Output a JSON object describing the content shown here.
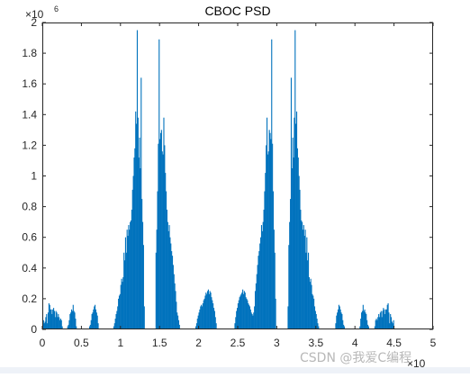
{
  "chart_data": {
    "type": "bar",
    "title": "CBOC PSD",
    "xlabel": "",
    "ylabel": "",
    "x_exponent_label": "×10",
    "y_exponent_label": "×10",
    "y_exponent_power": "6",
    "xlim": [
      0,
      5
    ],
    "ylim": [
      0,
      2
    ],
    "x_ticks": [
      "0",
      "0.5",
      "1",
      "1.5",
      "2",
      "2.5",
      "3",
      "3.5",
      "4",
      "4.5",
      "5"
    ],
    "y_ticks": [
      "0",
      "0.2",
      "0.4",
      "0.6",
      "0.8",
      "1",
      "1.2",
      "1.4",
      "1.6",
      "1.8",
      "2"
    ],
    "grid": false,
    "series_color": "#0072BD",
    "x_spacing": 0.01,
    "values": [
      0.0,
      0.06,
      0.04,
      0.05,
      0.08,
      0.1,
      0.04,
      0.11,
      0.17,
      0.16,
      0.13,
      0.13,
      0.1,
      0.13,
      0.14,
      0.12,
      0.08,
      0.12,
      0.11,
      0.08,
      0.1,
      0.08,
      0.06,
      0.07,
      0.06,
      0.02,
      0.0,
      0.0,
      0.0,
      0.0,
      0.0,
      0.0,
      0.02,
      0.03,
      0.06,
      0.1,
      0.11,
      0.13,
      0.12,
      0.16,
      0.12,
      0.11,
      0.07,
      0.02,
      0.0,
      0.0,
      0.0,
      0.0,
      0.0,
      0.0,
      0.0,
      0.0,
      0.0,
      0.0,
      0.0,
      0.0,
      0.0,
      0.0,
      0.0,
      0.0,
      0.02,
      0.03,
      0.06,
      0.1,
      0.11,
      0.13,
      0.15,
      0.16,
      0.13,
      0.11,
      0.09,
      0.04,
      0.0,
      0.0,
      0.0,
      0.0,
      0.0,
      0.0,
      0.0,
      0.0,
      0.0,
      0.0,
      0.0,
      0.0,
      0.0,
      0.0,
      0.0,
      0.0,
      0.0,
      0.0,
      0.0,
      0.02,
      0.04,
      0.07,
      0.1,
      0.12,
      0.15,
      0.2,
      0.22,
      0.23,
      0.29,
      0.33,
      0.31,
      0.34,
      0.5,
      0.45,
      0.6,
      0.5,
      0.65,
      0.61,
      0.68,
      0.65,
      0.7,
      0.71,
      0.78,
      0.91,
      1.0,
      1.12,
      1.18,
      1.42,
      1.34,
      1.95,
      1.38,
      1.12,
      1.25,
      1.05,
      1.64,
      0.85,
      0.7,
      0.55,
      0.15,
      0.0,
      0.0,
      0.0,
      0.0,
      0.0,
      0.0,
      0.0,
      0.0,
      0.0,
      0.0,
      0.0,
      0.0,
      0.0,
      0.0,
      0.5,
      0.65,
      0.9,
      1.21,
      1.89,
      1.24,
      1.28,
      1.3,
      1.16,
      1.14,
      1.38,
      1.2,
      1.02,
      0.9,
      0.78,
      0.7,
      0.64,
      0.68,
      0.6,
      0.56,
      0.51,
      0.48,
      0.42,
      0.36,
      0.3,
      0.25,
      0.18,
      0.11,
      0.09,
      0.06,
      0.03,
      0.0,
      0.0,
      0.0,
      0.0,
      0.0,
      0.0,
      0.0,
      0.0,
      0.0,
      0.0,
      0.0,
      0.0,
      0.0,
      0.0,
      0.0,
      0.0,
      0.0,
      0.0,
      0.0,
      0.0,
      0.02,
      0.04,
      0.07,
      0.09,
      0.11,
      0.13,
      0.15,
      0.16,
      0.15,
      0.17,
      0.19,
      0.2,
      0.22,
      0.24,
      0.23,
      0.25,
      0.26,
      0.23,
      0.25,
      0.24,
      0.21,
      0.19,
      0.17,
      0.14,
      0.12,
      0.08,
      0.04,
      0.0,
      0.0,
      0.0,
      0.0,
      0.0,
      0.0,
      0.0,
      0.0,
      0.0,
      0.0,
      0.0,
      0.0,
      0.0,
      0.0,
      0.0,
      0.0,
      0.0,
      0.0,
      0.0,
      0.0,
      0.0,
      0.0,
      0.0,
      0.04,
      0.08,
      0.12,
      0.14,
      0.17,
      0.19,
      0.21,
      0.22,
      0.23,
      0.24,
      0.26,
      0.23,
      0.25,
      0.24,
      0.21,
      0.2,
      0.19,
      0.17,
      0.16,
      0.15,
      0.13,
      0.11,
      0.1,
      0.09,
      0.11,
      0.15,
      0.25,
      0.3,
      0.36,
      0.42,
      0.48,
      0.51,
      0.56,
      0.6,
      0.68,
      0.64,
      0.7,
      0.78,
      0.9,
      1.02,
      1.2,
      1.38,
      1.14,
      1.16,
      1.3,
      1.28,
      1.24,
      1.89,
      1.21,
      0.9,
      0.65,
      0.5,
      0.2,
      0.0,
      0.0,
      0.0,
      0.0,
      0.0,
      0.0,
      0.0,
      0.0,
      0.0,
      0.0,
      0.0,
      0.0,
      0.0,
      0.0,
      0.0,
      0.15,
      0.55,
      0.7,
      0.85,
      1.64,
      1.05,
      1.25,
      1.12,
      1.38,
      1.95,
      1.34,
      1.42,
      1.18,
      1.12,
      1.0,
      0.91,
      0.78,
      0.71,
      0.7,
      0.65,
      0.68,
      0.61,
      0.65,
      0.5,
      0.6,
      0.45,
      0.5,
      0.34,
      0.31,
      0.33,
      0.29,
      0.23,
      0.22,
      0.2,
      0.15,
      0.12,
      0.1,
      0.07,
      0.04,
      0.02,
      0.0,
      0.0,
      0.0,
      0.0,
      0.0,
      0.0,
      0.0,
      0.0,
      0.0,
      0.0,
      0.0,
      0.0,
      0.0,
      0.0,
      0.0,
      0.0,
      0.0,
      0.0,
      0.0,
      0.0,
      0.0,
      0.04,
      0.09,
      0.11,
      0.13,
      0.16,
      0.15,
      0.13,
      0.11,
      0.1,
      0.06,
      0.03,
      0.02,
      0.0,
      0.0,
      0.0,
      0.0,
      0.0,
      0.0,
      0.0,
      0.0,
      0.0,
      0.0,
      0.0,
      0.0,
      0.0,
      0.0,
      0.0,
      0.0,
      0.0,
      0.0,
      0.0,
      0.02,
      0.07,
      0.11,
      0.12,
      0.16,
      0.12,
      0.13,
      0.11,
      0.1,
      0.06,
      0.03,
      0.02,
      0.0,
      0.0,
      0.0,
      0.0,
      0.0,
      0.0,
      0.0,
      0.02,
      0.06,
      0.07,
      0.06,
      0.08,
      0.1,
      0.08,
      0.11,
      0.12,
      0.08,
      0.12,
      0.14,
      0.13,
      0.1,
      0.13,
      0.13,
      0.16,
      0.17,
      0.11,
      0.04,
      0.1,
      0.08,
      0.05,
      0.04,
      0.06,
      0.0
    ]
  },
  "watermark": "CSDN @我爱C编程"
}
